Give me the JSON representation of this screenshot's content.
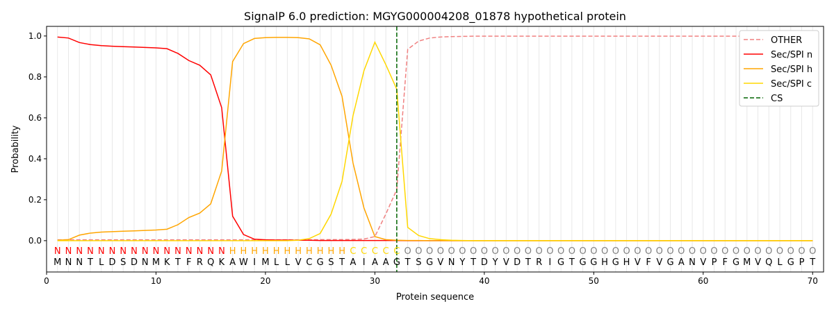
{
  "chart_data": {
    "type": "line",
    "title": "SignalP 6.0 prediction: MGYG000004208_01878 hypothetical protein",
    "xlabel": "Protein sequence",
    "ylabel": "Probability",
    "xlim": [
      0,
      71
    ],
    "ylim": [
      -0.153,
      1.047
    ],
    "xticks": [
      0,
      10,
      20,
      30,
      40,
      50,
      60,
      70
    ],
    "yticks": [
      "0.0",
      "0.2",
      "0.4",
      "0.6",
      "0.8",
      "1.0"
    ],
    "legend_position": "top-right",
    "sequence": "MNNTLDSDNMKTFRQKAWIMLLVCGSTAIAAGTSGVNYTDYVDTRIGTGGHGHVFVGANVPFGMVQLGPT",
    "labels": "NNNNNNNNNNNNNNNNHHHHHHHHHHHCCCCCOOOOOOOOOOOOOOOOOOOOOOOOOOOOOOOOOOOOOO",
    "label_colors": {
      "N": "#ff0000",
      "H": "#ffa500",
      "C": "#ffd700",
      "O": "#808080"
    },
    "cs_position": 32,
    "series": [
      {
        "name": "OTHER",
        "color": "#f08080",
        "dash": true,
        "values": [
          0.004,
          0.004,
          0.004,
          0.004,
          0.004,
          0.004,
          0.004,
          0.004,
          0.004,
          0.004,
          0.004,
          0.004,
          0.004,
          0.004,
          0.004,
          0.004,
          0.004,
          0.004,
          0.004,
          0.004,
          0.004,
          0.004,
          0.004,
          0.004,
          0.005,
          0.005,
          0.005,
          0.006,
          0.008,
          0.02,
          0.13,
          0.25,
          0.935,
          0.975,
          0.99,
          0.995,
          0.997,
          0.998,
          0.999,
          0.999,
          0.999,
          0.999,
          0.999,
          0.999,
          0.999,
          0.999,
          0.999,
          0.999,
          0.999,
          0.999,
          0.999,
          0.999,
          0.999,
          0.999,
          0.999,
          0.999,
          0.999,
          0.999,
          0.999,
          0.999,
          0.999,
          0.999,
          0.999,
          0.999,
          0.999,
          0.999,
          0.999,
          0.999,
          0.999,
          0.999
        ]
      },
      {
        "name": "Sec/SPI n",
        "color": "#ff0000",
        "dash": false,
        "values": [
          0.995,
          0.99,
          0.968,
          0.958,
          0.953,
          0.95,
          0.948,
          0.946,
          0.944,
          0.942,
          0.938,
          0.915,
          0.88,
          0.857,
          0.81,
          0.65,
          0.12,
          0.03,
          0.007,
          0.004,
          0.003,
          0.003,
          0.002,
          0.002,
          0.001,
          0.001,
          0.001,
          0.001,
          0.001,
          0.001,
          0.001,
          0.001,
          0,
          0,
          0,
          0,
          0,
          0,
          0,
          0,
          0,
          0,
          0,
          0,
          0,
          0,
          0,
          0,
          0,
          0,
          0,
          0,
          0,
          0,
          0,
          0,
          0,
          0,
          0,
          0,
          0,
          0,
          0,
          0,
          0,
          0,
          0,
          0,
          0,
          0
        ]
      },
      {
        "name": "Sec/SPI h",
        "color": "#ffa500",
        "dash": false,
        "values": [
          0.002,
          0.005,
          0.027,
          0.037,
          0.042,
          0.044,
          0.046,
          0.048,
          0.05,
          0.052,
          0.056,
          0.078,
          0.113,
          0.135,
          0.18,
          0.34,
          0.875,
          0.963,
          0.988,
          0.992,
          0.993,
          0.993,
          0.992,
          0.986,
          0.957,
          0.857,
          0.705,
          0.38,
          0.16,
          0.02,
          0.005,
          0.002,
          0.001,
          0.001,
          0,
          0,
          0,
          0,
          0,
          0,
          0,
          0,
          0,
          0,
          0,
          0,
          0,
          0,
          0,
          0,
          0,
          0,
          0,
          0,
          0,
          0,
          0,
          0,
          0,
          0,
          0,
          0,
          0,
          0,
          0,
          0,
          0,
          0,
          0,
          0
        ]
      },
      {
        "name": "Sec/SPI c",
        "color": "#ffd700",
        "dash": false,
        "values": [
          0,
          0,
          0,
          0,
          0,
          0,
          0,
          0,
          0,
          0,
          0,
          0,
          0,
          0,
          0,
          0,
          0,
          0,
          0,
          0,
          0,
          0,
          0.002,
          0.01,
          0.035,
          0.13,
          0.29,
          0.61,
          0.83,
          0.97,
          0.86,
          0.74,
          0.065,
          0.025,
          0.01,
          0.005,
          0.002,
          0.001,
          0,
          0,
          0,
          0,
          0,
          0,
          0,
          0,
          0,
          0,
          0,
          0,
          0,
          0,
          0,
          0,
          0,
          0,
          0,
          0,
          0,
          0,
          0,
          0,
          0,
          0,
          0,
          0,
          0,
          0,
          0,
          0
        ]
      }
    ],
    "cs_legend": {
      "name": "CS",
      "color": "#006400"
    }
  }
}
